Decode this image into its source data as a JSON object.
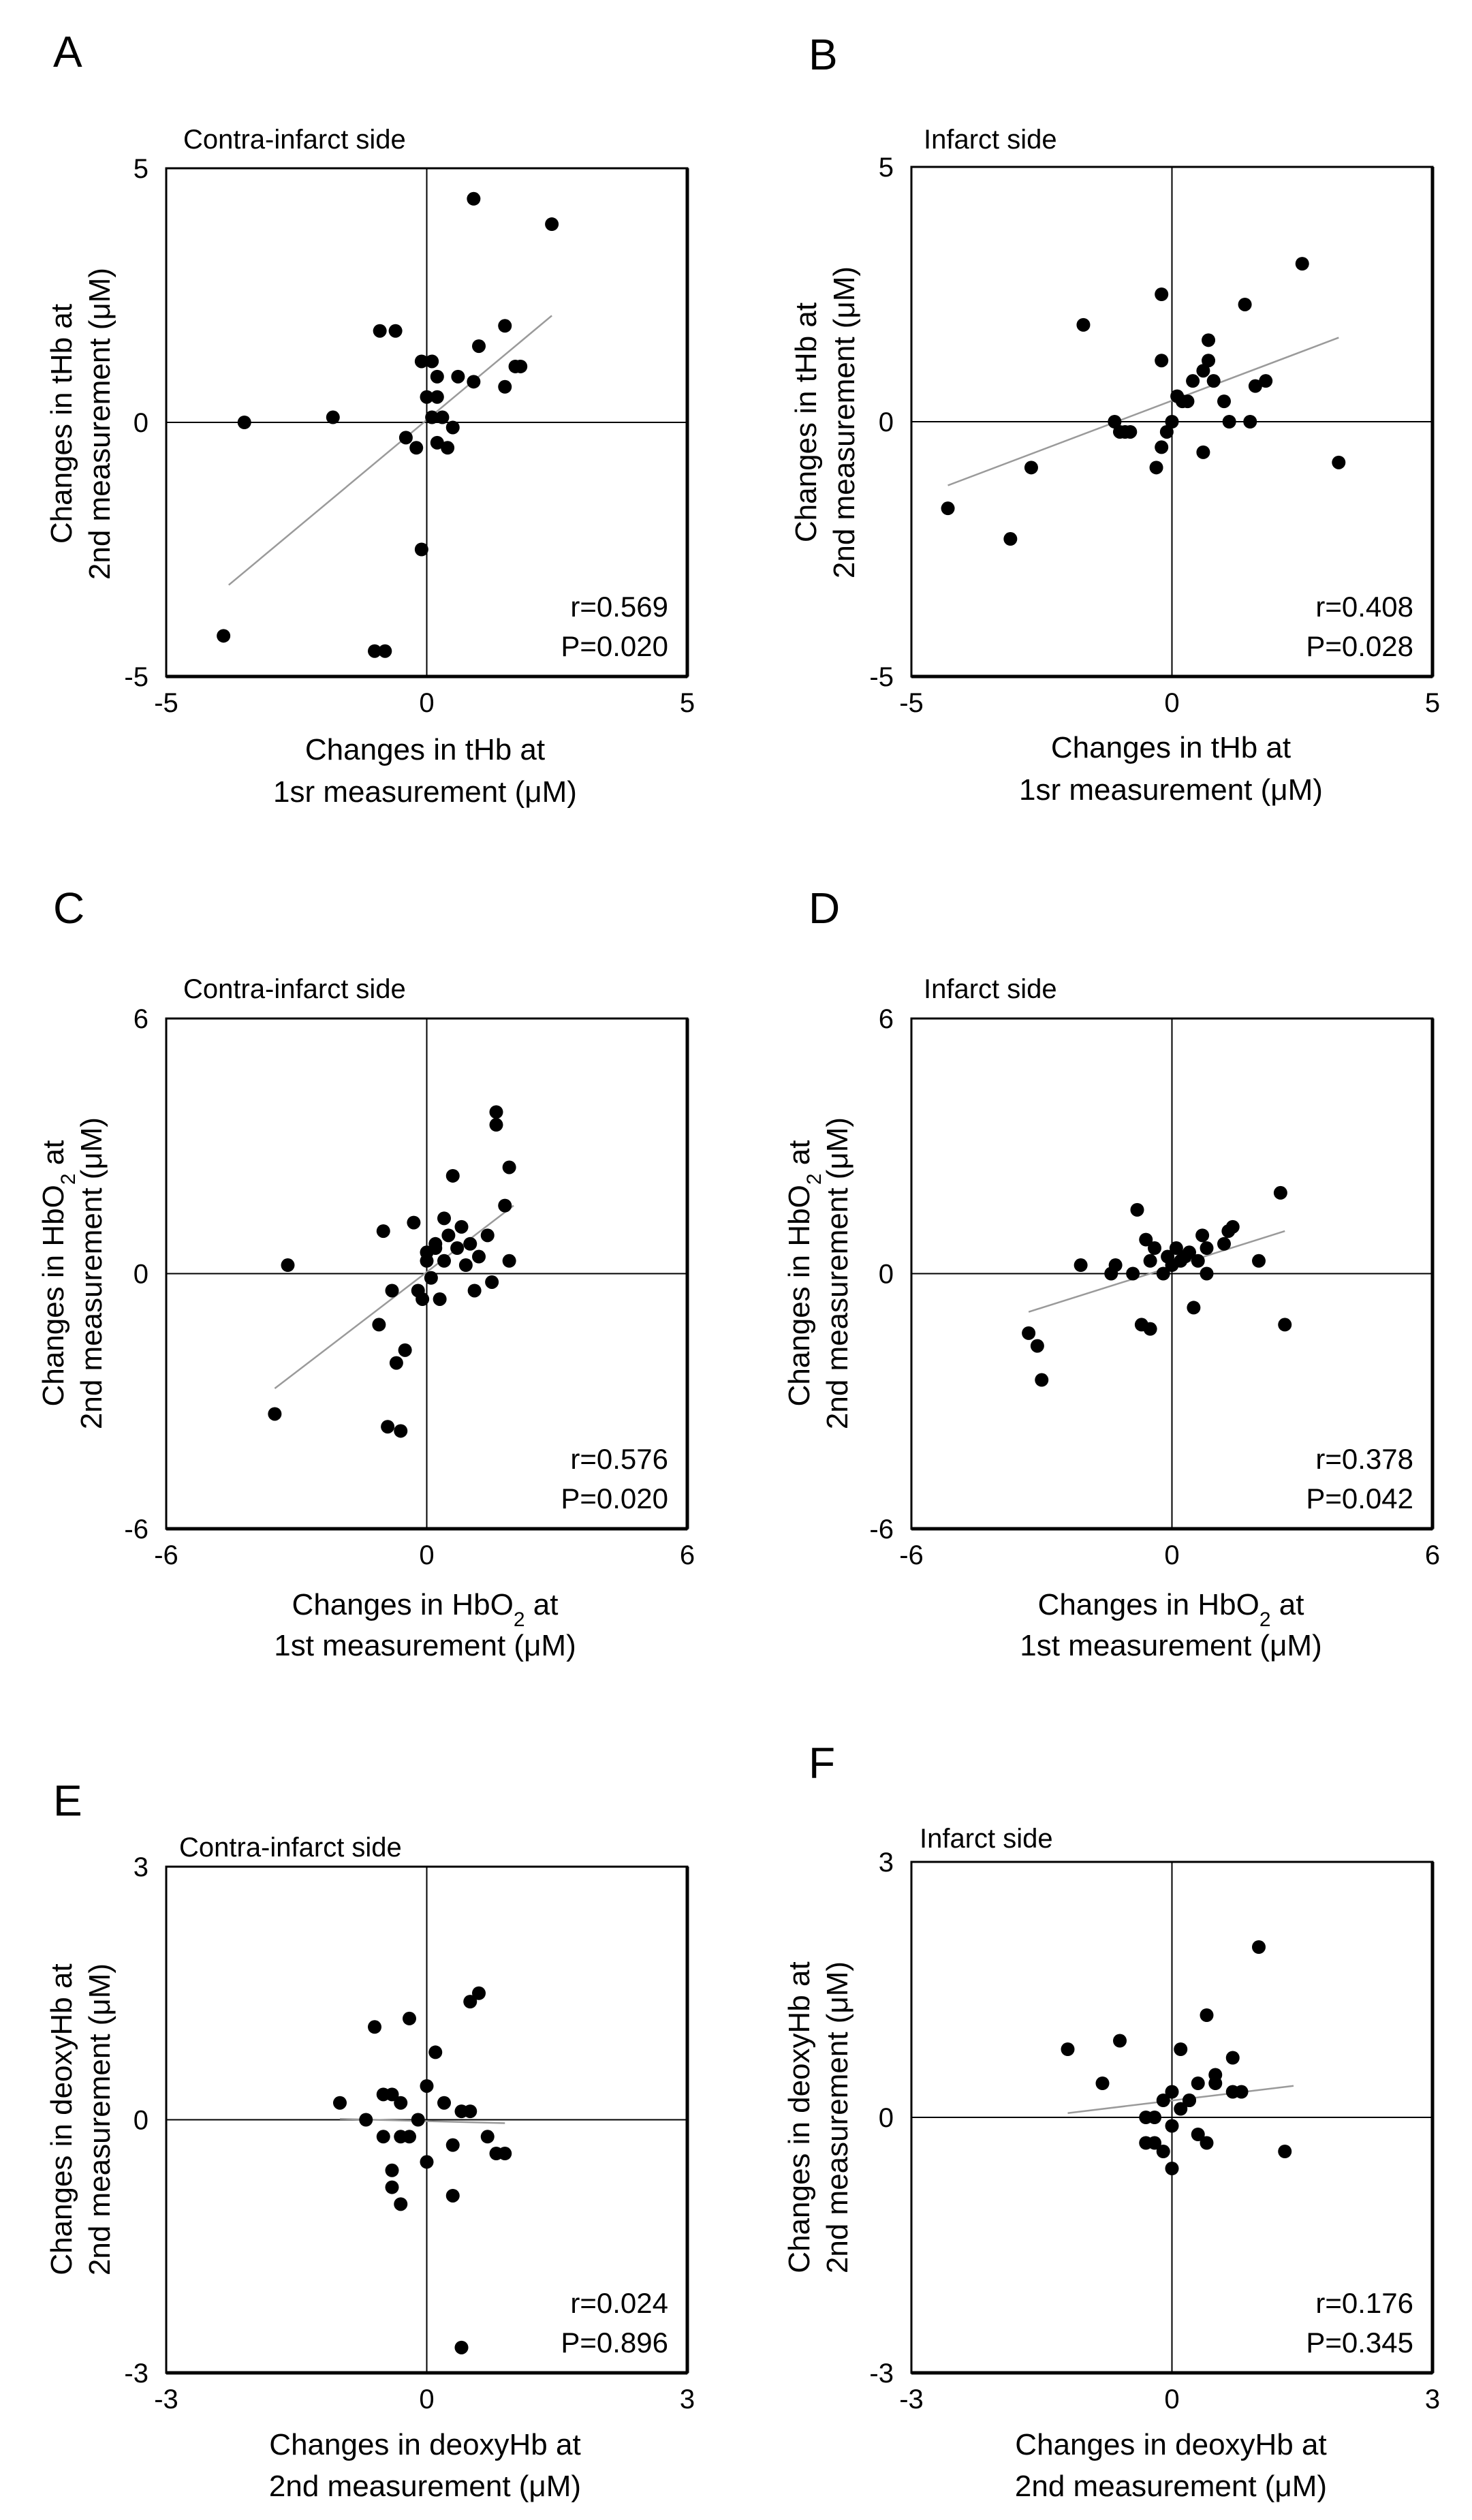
{
  "figure": {
    "title": "",
    "background": "#ffffff",
    "point_color": "#000000",
    "trend_color": "#9a9a9a"
  },
  "chart_data": [
    {
      "type": "scatter",
      "panel": "A",
      "subtitle": "Contra-infarct side",
      "xlabel_lines": [
        "Changes in tHb at",
        "1sr measurement (μM)"
      ],
      "ylabel_lines": [
        "Changes in tHb at",
        "2nd measurement (μM)"
      ],
      "xlim": [
        -5,
        5
      ],
      "ylim": [
        -5,
        5
      ],
      "xticks": [
        "-5",
        "0",
        "5"
      ],
      "yticks": [
        "-5",
        "0",
        "5"
      ],
      "stat_r": "r=0.569",
      "stat_p": "P=0.020",
      "x": [
        -3.9,
        -3.5,
        -1.8,
        -1.0,
        -0.8,
        -0.6,
        -0.9,
        -0.4,
        -0.2,
        -0.1,
        -0.1,
        0.0,
        0.1,
        0.1,
        0.2,
        0.2,
        0.2,
        0.3,
        0.4,
        0.5,
        0.6,
        0.9,
        0.9,
        1.0,
        1.5,
        1.5,
        1.7,
        1.8,
        2.4
      ],
      "y": [
        -4.2,
        0.0,
        0.1,
        -4.5,
        -4.5,
        1.8,
        1.8,
        -0.3,
        -0.5,
        -2.5,
        1.2,
        0.5,
        1.2,
        0.1,
        0.9,
        -0.4,
        0.5,
        0.1,
        -0.5,
        -0.1,
        0.9,
        4.4,
        0.8,
        1.5,
        0.7,
        1.9,
        1.1,
        1.1,
        3.9
      ],
      "trend": {
        "x": [
          -3.8,
          2.4
        ],
        "y": [
          -3.2,
          2.1
        ]
      }
    },
    {
      "type": "scatter",
      "panel": "B",
      "subtitle": "Infarct side",
      "xlabel_lines": [
        "Changes in tHb at",
        "1sr measurement (μM)"
      ],
      "ylabel_lines": [
        "Changes in tHb at",
        "2nd measurement (μM)"
      ],
      "xlim": [
        -5,
        5
      ],
      "ylim": [
        -5,
        5
      ],
      "xticks": [
        "-5",
        "0",
        "5"
      ],
      "yticks": [
        "-5",
        "0",
        "5"
      ],
      "stat_r": "r=0.408",
      "stat_p": "P=0.028",
      "x": [
        -4.3,
        -3.1,
        -2.7,
        -1.7,
        -1.1,
        -1.0,
        -0.9,
        -0.8,
        -0.3,
        -0.2,
        -0.2,
        -0.2,
        -0.1,
        0.0,
        0.1,
        0.2,
        0.3,
        0.4,
        0.6,
        0.6,
        0.7,
        0.7,
        0.8,
        1.0,
        1.1,
        1.4,
        1.5,
        1.6,
        1.8,
        2.5,
        3.2
      ],
      "y": [
        -1.7,
        -2.3,
        -0.9,
        1.9,
        0.0,
        -0.2,
        -0.2,
        -0.2,
        -0.9,
        -0.5,
        1.2,
        2.5,
        -0.2,
        0.0,
        0.5,
        0.4,
        0.4,
        0.8,
        -0.6,
        1.0,
        1.2,
        1.6,
        0.8,
        0.4,
        0.0,
        2.3,
        0.0,
        0.7,
        0.8,
        3.1,
        -0.8
      ],
      "trend": {
        "x": [
          -4.3,
          3.2
        ],
        "y": [
          -1.25,
          1.65
        ]
      }
    },
    {
      "type": "scatter",
      "panel": "C",
      "subtitle": "Contra-infarct side",
      "xlabel_parts": {
        "pre": "Changes in HbO",
        "sub": "2",
        "post": " at"
      },
      "xlabel_line2": "1st measurement (μM)",
      "ylabel_parts": {
        "pre": "Changes in HbO",
        "sub": "2",
        "post": " at"
      },
      "ylabel_line2": "2nd measurement (μM)",
      "xlim": [
        -6,
        6
      ],
      "ylim": [
        -6,
        6
      ],
      "xticks": [
        "-6",
        "0",
        "6"
      ],
      "yticks": [
        "-6",
        "0",
        "6"
      ],
      "stat_r": "r=0.576",
      "stat_p": "P=0.020",
      "x": [
        -3.5,
        -3.2,
        -1.1,
        -1.0,
        -0.9,
        -0.8,
        -0.7,
        -0.6,
        -0.5,
        -0.3,
        -0.2,
        -0.1,
        0.0,
        0.0,
        0.1,
        0.2,
        0.2,
        0.3,
        0.4,
        0.4,
        0.5,
        0.6,
        0.7,
        0.8,
        0.9,
        1.0,
        1.1,
        1.2,
        1.4,
        1.5,
        1.6,
        1.6,
        1.8,
        1.9,
        1.9
      ],
      "y": [
        -3.3,
        0.2,
        -1.2,
        1.0,
        -3.6,
        -0.4,
        -2.1,
        -3.7,
        -1.8,
        1.2,
        -0.4,
        -0.6,
        0.3,
        0.5,
        -0.1,
        0.7,
        0.6,
        -0.6,
        0.3,
        1.3,
        0.9,
        2.3,
        0.6,
        1.1,
        0.2,
        0.7,
        -0.4,
        0.4,
        0.9,
        -0.2,
        3.5,
        3.8,
        1.6,
        2.5,
        0.3
      ],
      "trend": {
        "x": [
          -3.5,
          2.0
        ],
        "y": [
          -2.7,
          1.6
        ]
      }
    },
    {
      "type": "scatter",
      "panel": "D",
      "subtitle": "Infarct side",
      "xlabel_parts": {
        "pre": "Changes in HbO",
        "sub": "2",
        "post": " at"
      },
      "xlabel_line2": "1st measurement (μM)",
      "ylabel_parts": {
        "pre": "Changes in HbO",
        "sub": "2",
        "post": " at"
      },
      "ylabel_line2": "2nd measurement (μM)",
      "xlim": [
        -6,
        6
      ],
      "ylim": [
        -6,
        6
      ],
      "xticks": [
        "-6",
        "0",
        "6"
      ],
      "yticks": [
        "-6",
        "0",
        "6"
      ],
      "stat_r": "r=0.378",
      "stat_p": "P=0.042",
      "x": [
        -3.3,
        -3.1,
        -3.0,
        -2.1,
        -1.4,
        -1.3,
        -0.9,
        -0.8,
        -0.7,
        -0.6,
        -0.5,
        -0.5,
        -0.4,
        -0.2,
        -0.1,
        0.0,
        0.1,
        0.2,
        0.3,
        0.4,
        0.5,
        0.6,
        0.7,
        0.8,
        0.8,
        1.2,
        1.3,
        1.4,
        2.0,
        2.5,
        2.6
      ],
      "y": [
        -1.4,
        -1.7,
        -2.5,
        0.2,
        0.0,
        0.2,
        0.0,
        1.5,
        -1.2,
        0.8,
        -1.3,
        0.3,
        0.6,
        0.0,
        0.4,
        0.2,
        0.6,
        0.3,
        0.4,
        0.5,
        -0.8,
        0.3,
        0.9,
        0.6,
        0.0,
        0.7,
        1.0,
        1.1,
        0.3,
        1.9,
        -1.2
      ],
      "trend": {
        "x": [
          -3.3,
          2.6
        ],
        "y": [
          -0.9,
          1.0
        ]
      }
    },
    {
      "type": "scatter",
      "panel": "E",
      "subtitle": "Contra-infarct side",
      "xlabel_lines": [
        "Changes in deoxyHb at",
        "2nd measurement (μM)"
      ],
      "ylabel_lines": [
        "Changes in deoxyHb at",
        "2nd measurement (μM)"
      ],
      "xlim": [
        -3,
        3
      ],
      "ylim": [
        -3,
        3
      ],
      "xticks": [
        "-3",
        "0",
        "3"
      ],
      "yticks": [
        "-3",
        "0",
        "3"
      ],
      "stat_r": "r=0.024",
      "stat_p": "P=0.896",
      "x": [
        -1.0,
        -0.7,
        -0.6,
        -0.5,
        -0.5,
        -0.4,
        -0.4,
        -0.4,
        -0.3,
        -0.3,
        -0.3,
        -0.2,
        -0.2,
        -0.1,
        0.0,
        0.0,
        0.1,
        0.2,
        0.3,
        0.3,
        0.4,
        0.4,
        0.5,
        0.5,
        0.6,
        0.7,
        0.8,
        0.9
      ],
      "y": [
        0.2,
        0.0,
        1.1,
        0.3,
        -0.2,
        0.3,
        -0.6,
        -0.8,
        -1.0,
        0.2,
        -0.2,
        1.2,
        -0.2,
        0.0,
        0.4,
        -0.5,
        0.8,
        0.2,
        -0.3,
        -0.9,
        0.1,
        -2.7,
        1.4,
        0.1,
        1.5,
        -0.2,
        -0.4,
        -0.4
      ],
      "trend": {
        "x": [
          -1.0,
          0.9
        ],
        "y": [
          0.01,
          -0.04
        ]
      }
    },
    {
      "type": "scatter",
      "panel": "F",
      "subtitle": "Infarct side",
      "xlabel_lines": [
        "Changes in deoxyHb at",
        "2nd measurement (μM)"
      ],
      "ylabel_lines": [
        "Changes in deoxyHb at",
        "2nd measurement (μM)"
      ],
      "xlim": [
        -3,
        3
      ],
      "ylim": [
        -3,
        3
      ],
      "xticks": [
        "-3",
        "0",
        "3"
      ],
      "yticks": [
        "-3",
        "0",
        "3"
      ],
      "stat_r": "r=0.176",
      "stat_p": "P=0.345",
      "x": [
        -1.2,
        -0.8,
        -0.6,
        -0.3,
        -0.3,
        -0.2,
        -0.2,
        -0.1,
        -0.1,
        0.0,
        0.0,
        0.0,
        0.1,
        0.1,
        0.2,
        0.2,
        0.3,
        0.3,
        0.4,
        0.4,
        0.5,
        0.5,
        0.7,
        0.7,
        0.8,
        1.0,
        1.3
      ],
      "y": [
        0.8,
        0.4,
        0.9,
        0.0,
        -0.3,
        0.0,
        -0.3,
        0.2,
        -0.4,
        0.3,
        -0.1,
        -0.6,
        0.1,
        0.8,
        0.2,
        0.2,
        0.4,
        -0.2,
        -0.3,
        1.2,
        0.4,
        0.5,
        0.3,
        0.7,
        0.3,
        2.0,
        -0.4
      ],
      "trend": {
        "x": [
          -1.2,
          1.4
        ],
        "y": [
          0.05,
          0.37
        ]
      }
    }
  ]
}
